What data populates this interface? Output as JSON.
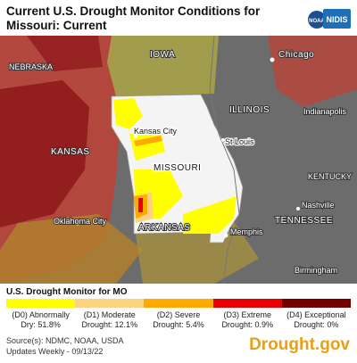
{
  "title": "Current U.S. Drought Monitor Conditions for Missouri: Current",
  "logos": {
    "noaa": "NOAA",
    "nidis": "NIDIS"
  },
  "map_labels": {
    "nebraska": "NEBRASKA",
    "iowa": "IOWA",
    "chicago": "Chicago",
    "illinois": "ILLINOIS",
    "indianapolis": "Indianapolis",
    "kansas_city": "Kansas City",
    "st_louis": "St Louis",
    "missouri": "MISSOURI",
    "kansas": "KANSAS",
    "kentucky": "KENTUCKY",
    "nashville": "Nashville",
    "tennessee": "TENNESSEE",
    "oklahoma_city": "Oklahoma City",
    "arkansas": "ARKANSAS",
    "memphis": "Memphis",
    "birmingham": "Birmingham"
  },
  "legend": {
    "title": "U.S. Drought Monitor for MO",
    "categories": [
      {
        "line1": "(D0) Abnormally",
        "line2": "Dry: 51.8%",
        "color": "#ffff00",
        "percent": 51.8
      },
      {
        "line1": "(D1) Moderate",
        "line2": "Drought: 12.1%",
        "color": "#fcd37f",
        "percent": 12.1
      },
      {
        "line1": "(D2) Severe",
        "line2": "Drought: 5.4%",
        "color": "#ffaa00",
        "percent": 5.4
      },
      {
        "line1": "(D3) Extreme",
        "line2": "Drought: 0.9%",
        "color": "#e60000",
        "percent": 0.9
      },
      {
        "line1": "(D4) Exceptional",
        "line2": "Drought: 0%",
        "color": "#730000",
        "percent": 0
      }
    ]
  },
  "footer": {
    "source": "Source(s): NDMC, NOAA, USDA",
    "updates": "Updates Weekly - 09/13/22",
    "brand": "Drought.gov"
  }
}
